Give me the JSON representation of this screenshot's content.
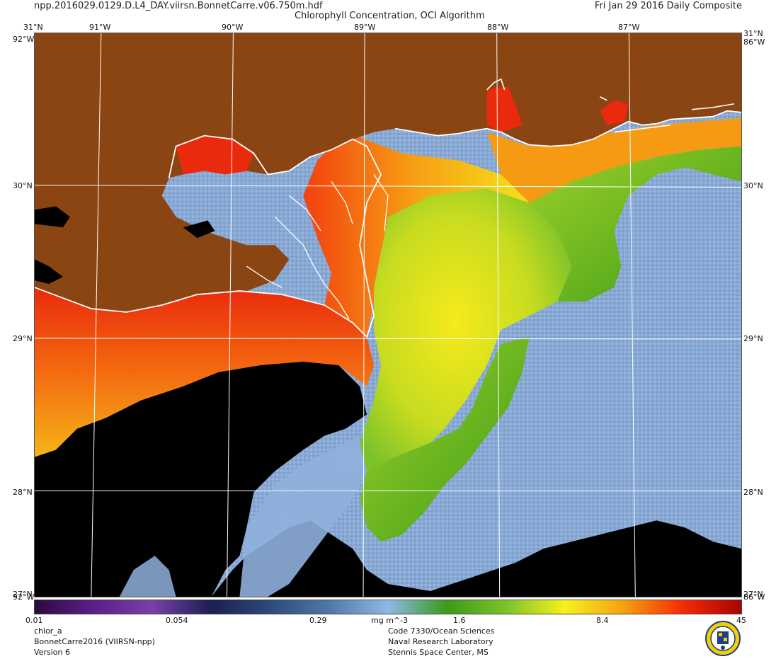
{
  "header": {
    "filename": "npp.2016029.0129.D.L4_DAY.viirsn.BonnetCarre.v06.750m.hdf",
    "title": "Chlorophyll Concentration, OCI Algorithm",
    "date": "Fri Jan 29 2016 Daily Composite"
  },
  "map": {
    "top_lon_labels": [
      "91°W",
      "90°W",
      "89°W",
      "88°W",
      "87°W"
    ],
    "lat_labels": [
      "30°N",
      "29°N",
      "28°N"
    ],
    "corner_top_left": "31°N",
    "corner_top_right": "31°N",
    "corner_side_top": "92°W",
    "corner_side_bottom": "86°W",
    "corner_bottom_left": "27°N",
    "corner_bottom_right": "27°N",
    "colors": {
      "land": "#8B4513",
      "no_data": "#000000",
      "coastline": "#ffffff",
      "offshore": "#8fb0dc",
      "shelf_green": "#4caf1e",
      "yellow": "#f4e21a",
      "orange": "#f59a12",
      "red": "#ea2a0c"
    }
  },
  "colorbar": {
    "ticks": [
      "0.01",
      "0.054",
      "0.29",
      "mg m^-3",
      "1.6",
      "8.4",
      "45"
    ],
    "stops": [
      "#2b0a3d",
      "#5a1f8a",
      "#7a3fa8",
      "#1a1f4e",
      "#2d4a7a",
      "#4f78a8",
      "#8fb8e6",
      "#3a9a1a",
      "#7cc22a",
      "#f6f21a",
      "#f7a010",
      "#f32c06",
      "#a80202"
    ]
  },
  "footer": {
    "left": [
      "chlor_a",
      "BonnetCarre2016 (VIIRSN-npp)",
      "Version 6"
    ],
    "center": [
      "Code 7330/Ocean Sciences",
      "Naval Research Laboratory",
      "Stennis Space Center, MS"
    ]
  },
  "logo": {
    "icon": "navy-seal-emblem",
    "fill": "#f4d000",
    "ring": "#1d3c8c"
  }
}
